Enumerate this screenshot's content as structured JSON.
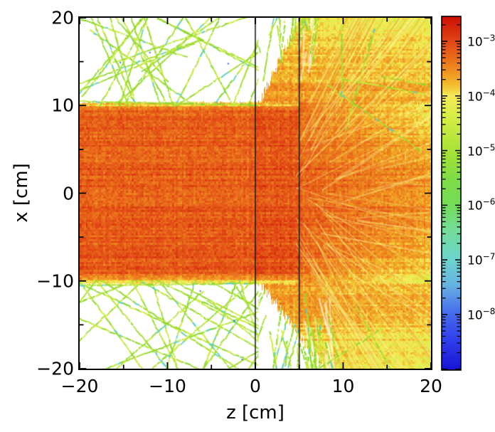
{
  "chart_data": {
    "type": "heatmap",
    "title": "",
    "xlabel": "z [cm]",
    "ylabel": "x [cm]",
    "x_range": [
      -20,
      20
    ],
    "y_range": [
      -20,
      20
    ],
    "x_tick_values": [
      -20,
      -10,
      0,
      10,
      20
    ],
    "x_tick_labels": [
      "−20",
      "−10",
      "0",
      "10",
      "20"
    ],
    "y_tick_values": [
      20,
      10,
      0,
      -10,
      -20
    ],
    "y_tick_labels": [
      "20",
      "10",
      "0",
      "−10",
      "−20"
    ],
    "minor_tick_values": [
      -15,
      -5,
      5,
      15
    ],
    "grid": false,
    "colorbar": {
      "scale": "log10",
      "position": "right",
      "tick_labels": [
        {
          "base": "10",
          "exp": "−3"
        },
        {
          "base": "10",
          "exp": "−4"
        },
        {
          "base": "10",
          "exp": "−5"
        },
        {
          "base": "10",
          "exp": "−6"
        },
        {
          "base": "10",
          "exp": "−7"
        },
        {
          "base": "10",
          "exp": "−8"
        }
      ],
      "decade_fractions": [
        0.0704,
        0.2249,
        0.3794,
        0.5339,
        0.6884,
        0.8429
      ],
      "decade_step_fraction": 0.1545,
      "gradient_stops": [
        [
          0.0,
          "#cc0e04"
        ],
        [
          0.0704,
          "#e04614"
        ],
        [
          0.11,
          "#e8661a"
        ],
        [
          0.155,
          "#f09022"
        ],
        [
          0.19,
          "#f2b82a"
        ],
        [
          0.2249,
          "#f4ea58"
        ],
        [
          0.28,
          "#d8ee46"
        ],
        [
          0.3794,
          "#a8e236"
        ],
        [
          0.46,
          "#7edc46"
        ],
        [
          0.5339,
          "#74dc56"
        ],
        [
          0.6,
          "#74dc96"
        ],
        [
          0.6884,
          "#6cd4cc"
        ],
        [
          0.76,
          "#66b2e2"
        ],
        [
          0.8429,
          "#4468ee"
        ],
        [
          0.92,
          "#2e3cea"
        ],
        [
          1.0,
          "#1614d2"
        ]
      ]
    },
    "annotations": {
      "boundary_lines_z": [
        0,
        5
      ],
      "beam_half_width_cm": 10,
      "beam_direction": "+z",
      "beam_flux_level": "~10^-3 (red-orange core)",
      "scattered_track_level": "~10^-5 (yellow-green tracks)",
      "description": "Particle-track fluence map: a beam of half-width 10 cm travels in +z through a slab bounded by vertical lines at z = 0 and z = 5 cm, then spreads into a widening yellow cone of scattered radiation; sparse yellow-green secondary tracks criss-cross the white regions outside the beam."
    },
    "render": {
      "track_colors": [
        "#b2e233",
        "#9cdb2e",
        "#c9ec3e",
        "#8bd92b"
      ],
      "track_speck_color": "#59cfc0",
      "streak_light_color": "#faf58c",
      "streak_dark_color": "#e8961e",
      "frame_color": "#000000",
      "boundary_line_color": "#1a1a1a"
    }
  }
}
